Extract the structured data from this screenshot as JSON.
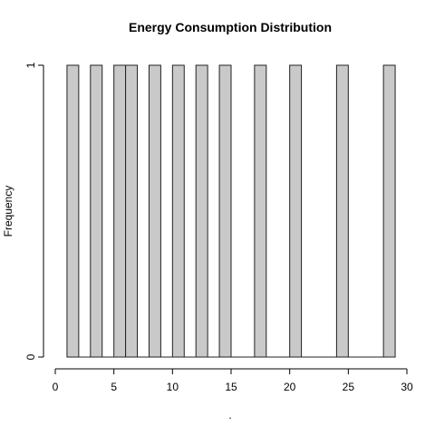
{
  "chart_data": {
    "type": "bar",
    "title": "Energy Consumption Distribution",
    "xlabel": ".",
    "ylabel": "Frequency",
    "xlim": [
      0,
      30
    ],
    "ylim": [
      0,
      1
    ],
    "x_ticks": [
      0,
      5,
      10,
      15,
      20,
      25,
      30
    ],
    "y_ticks": [
      0,
      1
    ],
    "bin_width": 1,
    "bins": [
      {
        "start": 1,
        "end": 2,
        "count": 1
      },
      {
        "start": 3,
        "end": 4,
        "count": 1
      },
      {
        "start": 5,
        "end": 6,
        "count": 1
      },
      {
        "start": 6,
        "end": 7,
        "count": 1
      },
      {
        "start": 8,
        "end": 9,
        "count": 1
      },
      {
        "start": 10,
        "end": 11,
        "count": 1
      },
      {
        "start": 12,
        "end": 13,
        "count": 1
      },
      {
        "start": 14,
        "end": 15,
        "count": 1
      },
      {
        "start": 17,
        "end": 18,
        "count": 1
      },
      {
        "start": 20,
        "end": 21,
        "count": 1
      },
      {
        "start": 24,
        "end": 25,
        "count": 1
      },
      {
        "start": 28,
        "end": 29,
        "count": 1
      }
    ],
    "grid": false,
    "legend": "none",
    "colors": {
      "bar_fill": "#c9c9c9",
      "bar_stroke": "#222222"
    }
  }
}
